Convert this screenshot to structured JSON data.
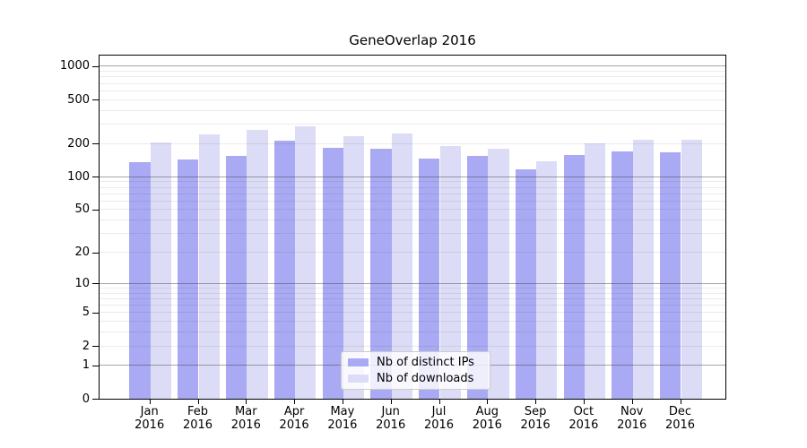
{
  "figure": {
    "background": "#ffffff"
  },
  "chart_data": {
    "type": "bar",
    "title": "GeneOverlap 2016",
    "x_categories": [
      "Jan",
      "Feb",
      "Mar",
      "Apr",
      "May",
      "Jun",
      "Jul",
      "Aug",
      "Sep",
      "Oct",
      "Nov",
      "Dec"
    ],
    "x_year": "2016",
    "series": [
      {
        "name": "Nb of distinct IPs",
        "color": "#a9a9f4",
        "values": [
          138,
          144,
          156,
          214,
          185,
          181,
          147,
          156,
          118,
          159,
          170,
          167
        ]
      },
      {
        "name": "Nb of downloads",
        "color": "#dcdcf7",
        "values": [
          205,
          246,
          268,
          287,
          235,
          250,
          190,
          181,
          140,
          201,
          219,
          220
        ]
      }
    ],
    "y_scale": "log1p",
    "y_ticks": [
      1000,
      500,
      200,
      100,
      50,
      20,
      10,
      5,
      2,
      1,
      0
    ],
    "ylim": [
      0,
      1280
    ],
    "grid": "horizontal; dark lines at decades 1/10/100/1000, faint minor lines at 2-9 per decade, drawn over bars",
    "legend_position": "inside plot, lower center"
  }
}
